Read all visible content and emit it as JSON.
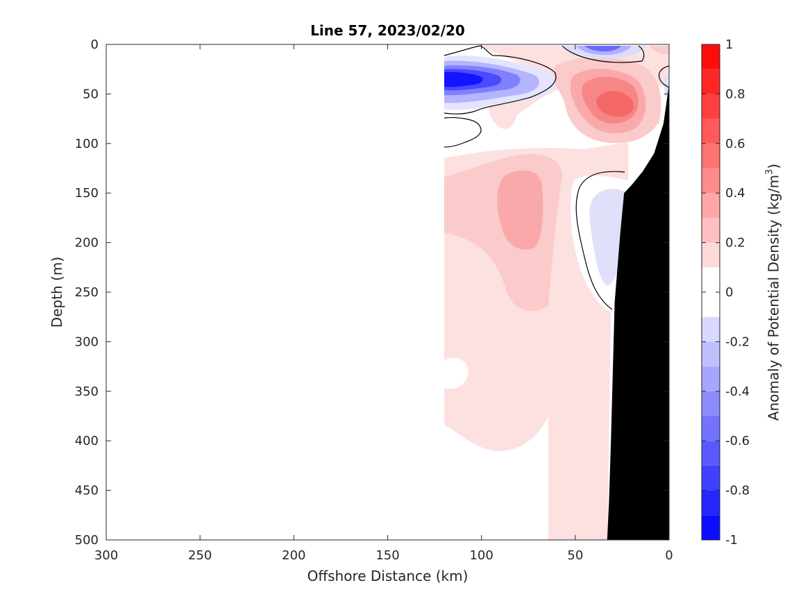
{
  "chart_data": {
    "type": "heatmap",
    "title": "Line 57, 2023/02/20",
    "xlabel": "Offshore Distance (km)",
    "ylabel": "Depth (m)",
    "colorbar_label_prefix": "Anomaly of Potential Density (kg/m",
    "colorbar_label_sup": "3",
    "colorbar_label_suffix": ")",
    "xlim": [
      300,
      0
    ],
    "x_reversed": true,
    "ylim": [
      0,
      500
    ],
    "y_reversed": true,
    "xticks": [
      300,
      250,
      200,
      150,
      100,
      50,
      0
    ],
    "yticks": [
      0,
      50,
      100,
      150,
      200,
      250,
      300,
      350,
      400,
      450,
      500
    ],
    "colorbar_range": [
      -1,
      1
    ],
    "colorbar_ticks": [
      "1",
      "0.8",
      "0.6",
      "0.4",
      "0.2",
      "0",
      "-0.2",
      "-0.4",
      "-0.6",
      "-0.8",
      "-1"
    ],
    "contour_levels": [
      -1,
      -0.9,
      -0.8,
      -0.7,
      -0.6,
      -0.5,
      -0.4,
      -0.3,
      -0.2,
      -0.1,
      0.1,
      0.2,
      0.3,
      0.4,
      0.5,
      0.6,
      0.7,
      0.8,
      0.9,
      1
    ],
    "colors": {
      "neg_max": "#0000ff",
      "pos_max": "#ff0000",
      "zero": "#ffffff",
      "bathymetry": "#000000",
      "axis": "#262626"
    },
    "anomaly_features": [
      {
        "kind": "negative core",
        "x_km": 107,
        "depth_m": 33,
        "value": -0.9
      },
      {
        "kind": "negative core",
        "x_km": 35,
        "depth_m": 0,
        "value": -0.6
      },
      {
        "kind": "negative patch",
        "x_km": 30,
        "depth_m": 180,
        "value": -0.2
      },
      {
        "kind": "positive core",
        "x_km": 27,
        "depth_m": 58,
        "value": 0.5
      },
      {
        "kind": "positive patch",
        "x_km": 82,
        "depth_m": 170,
        "value": 0.3
      },
      {
        "kind": "positive field",
        "x_km": 90,
        "depth_m": 320,
        "value": 0.1
      }
    ],
    "data_extent_km": [
      0,
      120
    ],
    "bathymetry": {
      "x_km": [
        0,
        3,
        8,
        14,
        20,
        24,
        26,
        29,
        30,
        31,
        32,
        33
      ],
      "depth_m": [
        40,
        80,
        110,
        128,
        142,
        150,
        190,
        260,
        330,
        400,
        460,
        500
      ]
    }
  }
}
